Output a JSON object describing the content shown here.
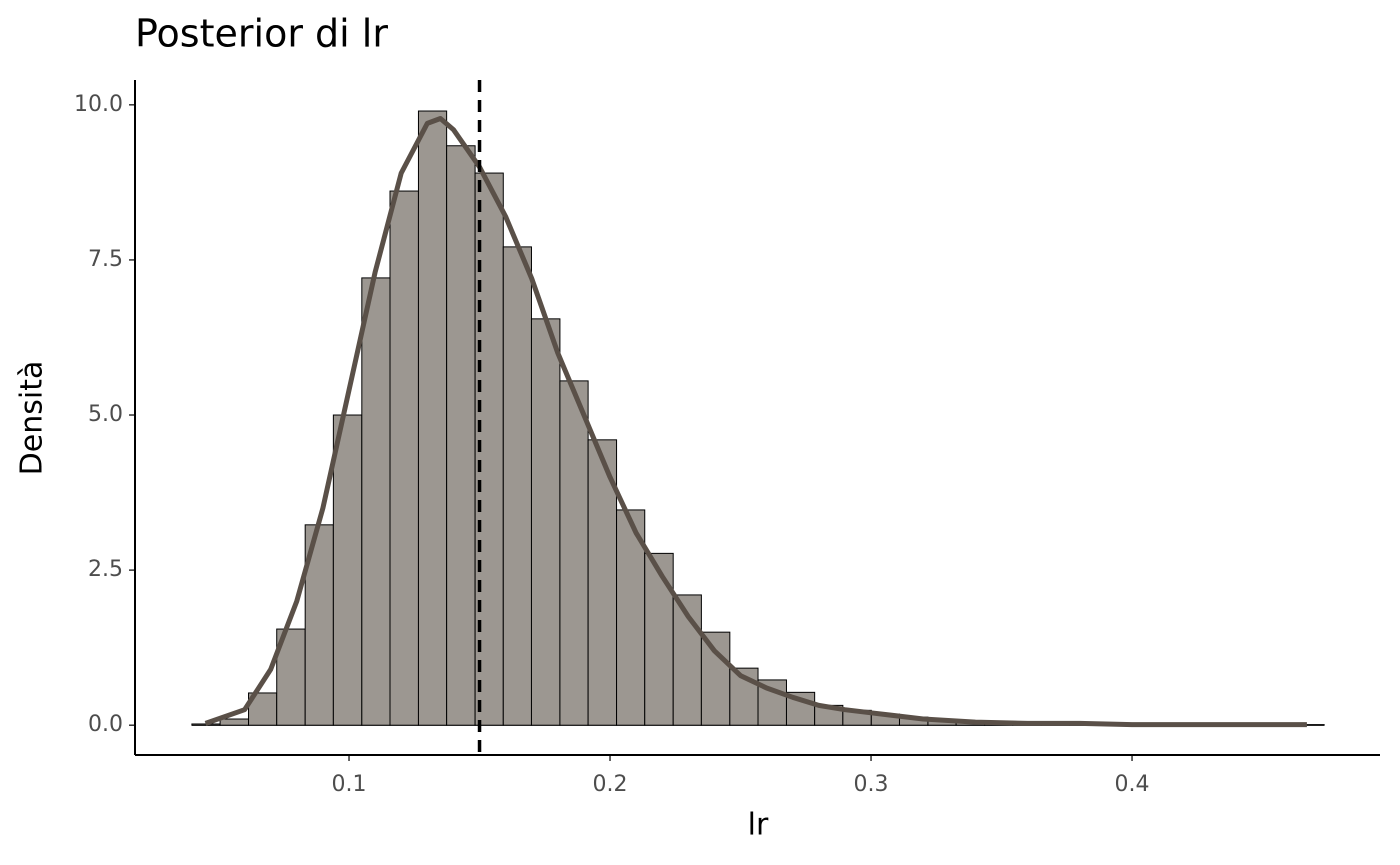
{
  "chart_data": {
    "type": "histogram",
    "title": "Posterior di lr",
    "x_label": "lr",
    "y_label": "Densità",
    "bins": [
      0.0398,
      0.0506,
      0.0615,
      0.0723,
      0.0832,
      0.094,
      0.1049,
      0.1157,
      0.1266,
      0.1374,
      0.1483,
      0.1591,
      0.1699,
      0.1808,
      0.1916,
      0.2025,
      0.2133,
      0.2242,
      0.235,
      0.2459,
      0.2567,
      0.2676,
      0.2784,
      0.2892,
      0.3001,
      0.3109,
      0.3218,
      0.3326,
      0.3435,
      0.3543,
      0.3652,
      0.376,
      0.3869,
      0.3977,
      0.4085,
      0.4194,
      0.4302,
      0.4411,
      0.4519,
      0.4628,
      0.4736
    ],
    "values": [
      0.02,
      0.1,
      0.52,
      1.55,
      3.23,
      5.0,
      7.21,
      8.61,
      9.9,
      9.34,
      8.9,
      7.71,
      6.55,
      5.55,
      4.6,
      3.47,
      2.77,
      2.1,
      1.5,
      0.92,
      0.73,
      0.53,
      0.32,
      0.24,
      0.18,
      0.13,
      0.1,
      0.07,
      0.05,
      0.04,
      0.03,
      0.03,
      0.02,
      0.03,
      0.01,
      0.01,
      0.01,
      0,
      0.01,
      0.01
    ],
    "color": "#9c9791",
    "edge_color": "#000000",
    "density": {
      "color": "#5a5048",
      "x": [
        0.045,
        0.06,
        0.07,
        0.08,
        0.09,
        0.1,
        0.11,
        0.12,
        0.13,
        0.135,
        0.14,
        0.15,
        0.16,
        0.17,
        0.18,
        0.19,
        0.2,
        0.21,
        0.22,
        0.23,
        0.24,
        0.25,
        0.26,
        0.27,
        0.28,
        0.29,
        0.3,
        0.32,
        0.34,
        0.36,
        0.38,
        0.4,
        0.44,
        0.467
      ],
      "y": [
        0.03,
        0.25,
        0.9,
        2.0,
        3.5,
        5.4,
        7.3,
        8.9,
        9.7,
        9.78,
        9.6,
        9.0,
        8.2,
        7.2,
        6.0,
        5.0,
        4.0,
        3.1,
        2.4,
        1.75,
        1.2,
        0.8,
        0.6,
        0.45,
        0.32,
        0.25,
        0.2,
        0.1,
        0.05,
        0.03,
        0.03,
        0.01,
        0.01,
        0.01
      ]
    },
    "vline": 0.15,
    "xlim": [
      0.018,
      0.495
    ],
    "ylim": [
      -0.48,
      10.4
    ],
    "xticks": [
      0.1,
      0.2,
      0.3,
      0.4
    ],
    "yticks": [
      {
        "value": 0,
        "label": "0.0"
      },
      2.5,
      {
        "value": 5,
        "label": "5.0"
      },
      7.5,
      {
        "value": 10,
        "label": "10.0"
      }
    ]
  }
}
